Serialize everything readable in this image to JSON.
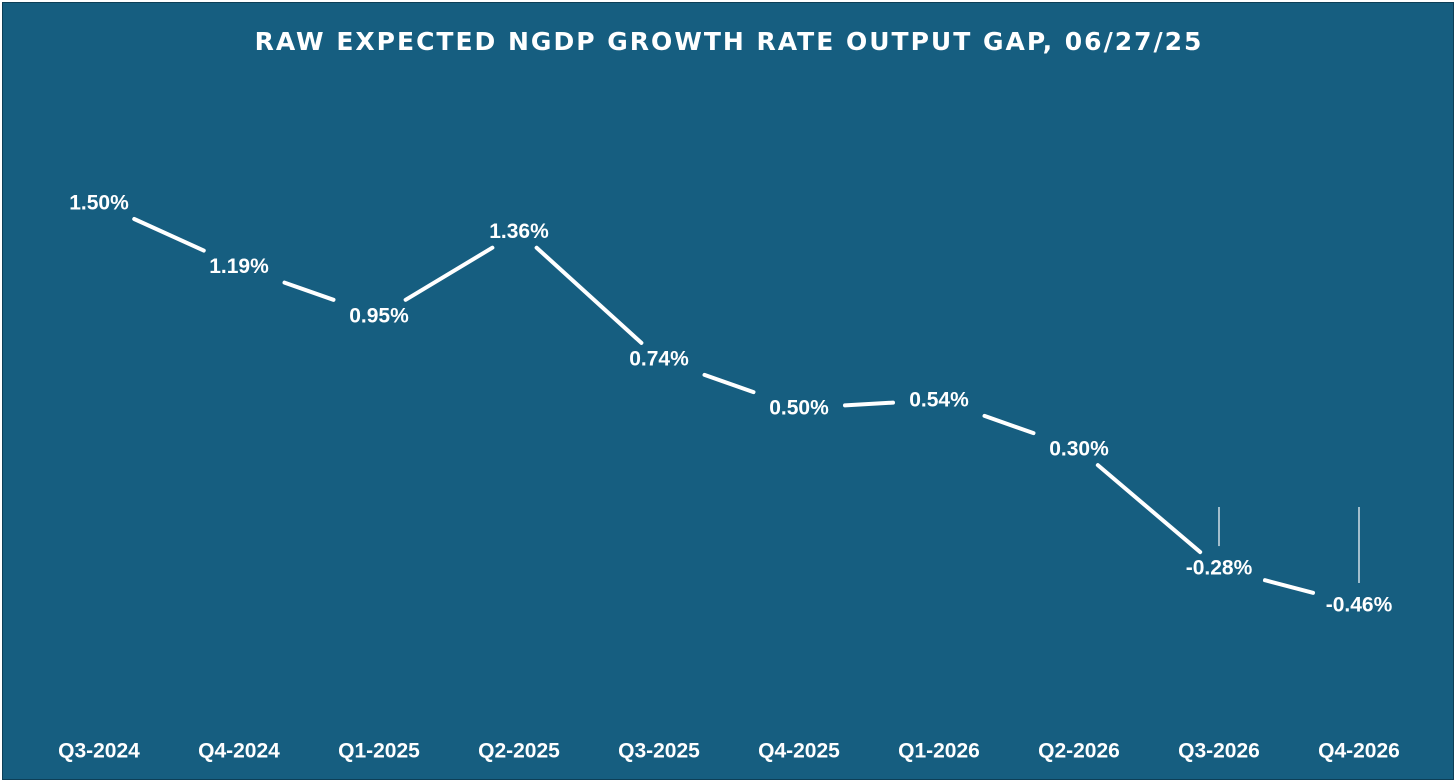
{
  "chart_data": {
    "type": "line",
    "title": "RAW EXPECTED NGDP GROWTH RATE OUTPUT GAP, 06/27/25",
    "xlabel": "",
    "ylabel": "",
    "categories": [
      "Q3-2024",
      "Q4-2024",
      "Q1-2025",
      "Q2-2025",
      "Q3-2025",
      "Q4-2025",
      "Q1-2026",
      "Q2-2026",
      "Q3-2026",
      "Q4-2026"
    ],
    "values": [
      1.5,
      1.19,
      0.95,
      1.36,
      0.74,
      0.5,
      0.54,
      0.3,
      -0.28,
      -0.46
    ],
    "data_labels": [
      "1.50%",
      "1.19%",
      "0.95%",
      "1.36%",
      "0.74%",
      "0.50%",
      "0.54%",
      "0.30%",
      "-0.28%",
      "-0.46%"
    ],
    "ylim": [
      -0.46,
      1.5
    ],
    "grid": false,
    "legend": "none",
    "colors": {
      "background": "#165e80",
      "line": "#ffffff",
      "text": "#ffffff"
    }
  }
}
